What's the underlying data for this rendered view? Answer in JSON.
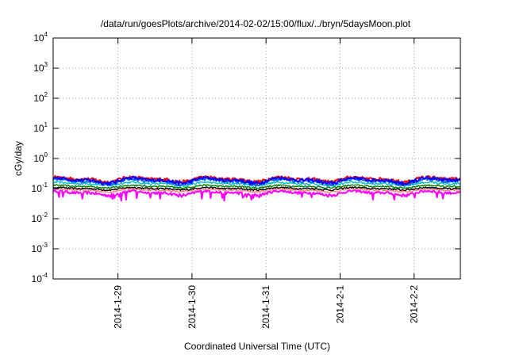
{
  "chart_data": {
    "type": "line",
    "title": "/data/run/goesPlots/archive/2014-02-02/15:00/flux/../bryn/5daysMoon.plot",
    "xlabel": "Coordinated Universal Time (UTC)",
    "ylabel": "cGy/day",
    "yscale": "log",
    "ylim": [
      0.0001,
      10000
    ],
    "y_ticks": [
      {
        "base": "10",
        "exp": "-4",
        "value": 0.0001
      },
      {
        "base": "10",
        "exp": "-3",
        "value": 0.001
      },
      {
        "base": "10",
        "exp": "-2",
        "value": 0.01
      },
      {
        "base": "10",
        "exp": "-1",
        "value": 0.1
      },
      {
        "base": "10",
        "exp": "0",
        "value": 1
      },
      {
        "base": "10",
        "exp": "1",
        "value": 10
      },
      {
        "base": "10",
        "exp": "2",
        "value": 100
      },
      {
        "base": "10",
        "exp": "3",
        "value": 1000
      },
      {
        "base": "10",
        "exp": "4",
        "value": 10000
      }
    ],
    "xlim": [
      "2014-01-28 03:00",
      "2014-02-02 15:00"
    ],
    "x_ticks": [
      "2014-1-29",
      "2014-1-30",
      "2014-1-31",
      "2014-2-1",
      "2014-2-2"
    ],
    "grid": true,
    "series": [
      {
        "color": "#ff00ff",
        "level": 0.072,
        "amplitude": 0.012,
        "dips": true
      },
      {
        "color": "#ff8080",
        "level": 0.088,
        "amplitude": 0.01,
        "dips": false
      },
      {
        "color": "#000000",
        "level": 0.1,
        "amplitude": 0.01,
        "dips": false
      },
      {
        "color": "#008000",
        "level": 0.118,
        "amplitude": 0.012,
        "dips": false
      },
      {
        "color": "#00c0c0",
        "level": 0.145,
        "amplitude": 0.018,
        "dips": false
      },
      {
        "color": "#0070ff",
        "level": 0.175,
        "amplitude": 0.035,
        "dips": false
      },
      {
        "color": "#ff0000",
        "level": 0.205,
        "amplitude": 0.04,
        "dips": false
      },
      {
        "color": "#0000ff",
        "level": 0.19,
        "amplitude": 0.04,
        "dips": false
      }
    ]
  }
}
